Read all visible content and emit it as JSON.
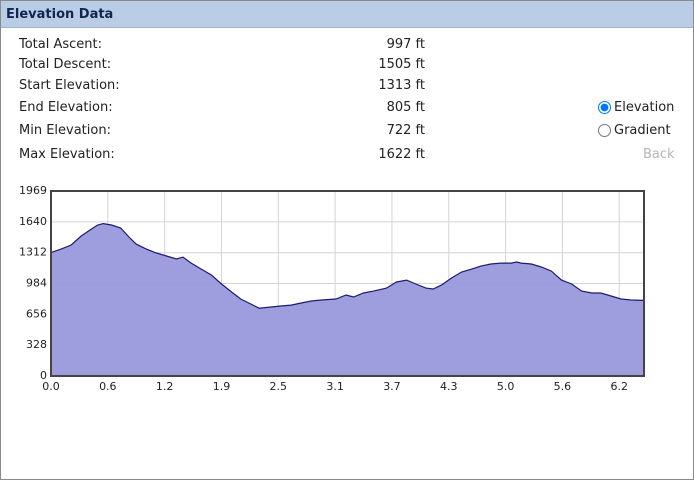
{
  "header": {
    "title": "Elevation Data"
  },
  "stats": [
    {
      "label": "Total Ascent:",
      "value": "997 ft"
    },
    {
      "label": "Total Descent:",
      "value": "1505 ft"
    },
    {
      "label": "Start Elevation:",
      "value": "1313 ft"
    },
    {
      "label": "End Elevation:",
      "value": "805 ft"
    },
    {
      "label": "Min Elevation:",
      "value": "722 ft"
    },
    {
      "label": "Max Elevation:",
      "value": "1622 ft"
    }
  ],
  "radios": [
    {
      "label": "Elevation",
      "checked": true
    },
    {
      "label": "Gradient",
      "checked": false
    }
  ],
  "back": "Back",
  "chart_data": {
    "type": "area",
    "x": [
      0,
      0.11,
      0.22,
      0.33,
      0.44,
      0.51,
      0.57,
      0.66,
      0.76,
      0.85,
      0.93,
      1.04,
      1.15,
      1.26,
      1.37,
      1.44,
      1.53,
      1.64,
      1.75,
      1.86,
      1.97,
      2.07,
      2.18,
      2.27,
      2.4,
      2.51,
      2.62,
      2.73,
      2.84,
      2.95,
      3.11,
      3.22,
      3.3,
      3.41,
      3.52,
      3.66,
      3.77,
      3.88,
      3.98,
      4.09,
      4.17,
      4.26,
      4.37,
      4.48,
      4.59,
      4.69,
      4.8,
      4.91,
      5.02,
      5.08,
      5.13,
      5.24,
      5.35,
      5.46,
      5.57,
      5.68,
      5.79,
      5.9,
      6.0,
      6.11,
      6.22,
      6.33,
      6.47
    ],
    "values": [
      1313,
      1351,
      1394,
      1490,
      1564,
      1607,
      1622,
      1607,
      1575,
      1479,
      1404,
      1351,
      1309,
      1277,
      1245,
      1266,
      1202,
      1138,
      1075,
      979,
      894,
      819,
      766,
      722,
      734,
      745,
      755,
      777,
      798,
      809,
      819,
      862,
      841,
      883,
      904,
      936,
      1000,
      1021,
      979,
      936,
      926,
      968,
      1043,
      1107,
      1138,
      1170,
      1192,
      1202,
      1202,
      1213,
      1202,
      1192,
      1160,
      1117,
      1021,
      979,
      904,
      883,
      883,
      851,
      819,
      809,
      805
    ],
    "color": "#9999dd",
    "line_color": "#1c1c6e",
    "xlim": [
      0,
      6.47
    ],
    "ylim": [
      0,
      1969
    ],
    "xticks": [
      {
        "value": 0,
        "label": "0.0"
      },
      {
        "value": 0.62,
        "label": "0.6"
      },
      {
        "value": 1.24,
        "label": "1.2"
      },
      {
        "value": 1.86,
        "label": "1.9"
      },
      {
        "value": 2.48,
        "label": "2.5"
      },
      3.1,
      {
        "value": 3.72,
        "label": "3.7"
      },
      {
        "value": 4.34,
        "label": "4.3"
      },
      {
        "value": 4.96,
        "label": "5.0"
      },
      {
        "value": 5.58,
        "label": "5.6"
      },
      6.2
    ],
    "yticks": [
      0,
      328,
      656,
      984,
      1312,
      1640,
      1969
    ],
    "grid": true
  }
}
